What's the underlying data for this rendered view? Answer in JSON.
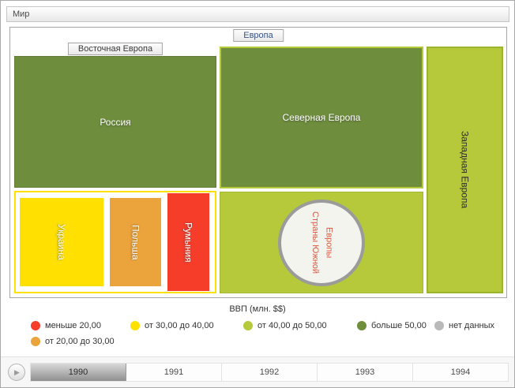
{
  "window": {
    "title": "Мир"
  },
  "treemap": {
    "europe_label": "Европа",
    "eastern_label": "Восточная Европа",
    "nodes": {
      "russia": "Россия",
      "ukraine": "Украина",
      "poland": "Польша",
      "romania": "Румыния",
      "northern": "Северная Европа",
      "southern": "Страны Южной\nЕвропы",
      "western": "Западная Европа"
    }
  },
  "colors": {
    "less_20": "#f53d2a",
    "from_20_30": "#eba33c",
    "from_30_40": "#ffe000",
    "from_40_50": "#b5c93a",
    "more_50": "#6e8e3d",
    "no_data": "#b9b9b9",
    "circle_text": "#dd5a45"
  },
  "legend": {
    "title": "ВВП (млн. $$)",
    "items": [
      {
        "label": "меньше 20,00",
        "color": "#f53d2a"
      },
      {
        "label": "от 20,00 до 30,00",
        "color": "#eba33c"
      },
      {
        "label": "от 30,00 до 40,00",
        "color": "#ffe000"
      },
      {
        "label": "от 40,00 до 50,00",
        "color": "#b5c93a"
      },
      {
        "label": "больше 50,00",
        "color": "#6e8e3d"
      },
      {
        "label": "нет данных",
        "color": "#b9b9b9"
      }
    ]
  },
  "timeline": {
    "years": [
      "1990",
      "1991",
      "1992",
      "1993",
      "1994"
    ],
    "selected_year": "1990",
    "play_icon": "▶"
  },
  "chart_data": {
    "type": "treemap",
    "title": "ВВП (млн. $$)",
    "root": "Мир",
    "groups": [
      {
        "name": "Европа",
        "children": [
          {
            "name": "Восточная Европа",
            "children": [
              {
                "name": "Россия",
                "category": "больше 50,00"
              },
              {
                "name": "Украина",
                "category": "от 30,00 до 40,00"
              },
              {
                "name": "Польша",
                "category": "от 20,00 до 30,00"
              },
              {
                "name": "Румыния",
                "category": "меньше 20,00"
              }
            ]
          },
          {
            "name": "Северная Европа",
            "category": "больше 50,00"
          },
          {
            "name": "Страны Южной Европы",
            "category": "от 40,00 до 50,00"
          },
          {
            "name": "Западная Европа",
            "category": "от 40,00 до 50,00"
          }
        ]
      }
    ],
    "legend_position": "bottom",
    "timeline_years": [
      "1990",
      "1991",
      "1992",
      "1993",
      "1994"
    ],
    "selected_year": "1990"
  }
}
